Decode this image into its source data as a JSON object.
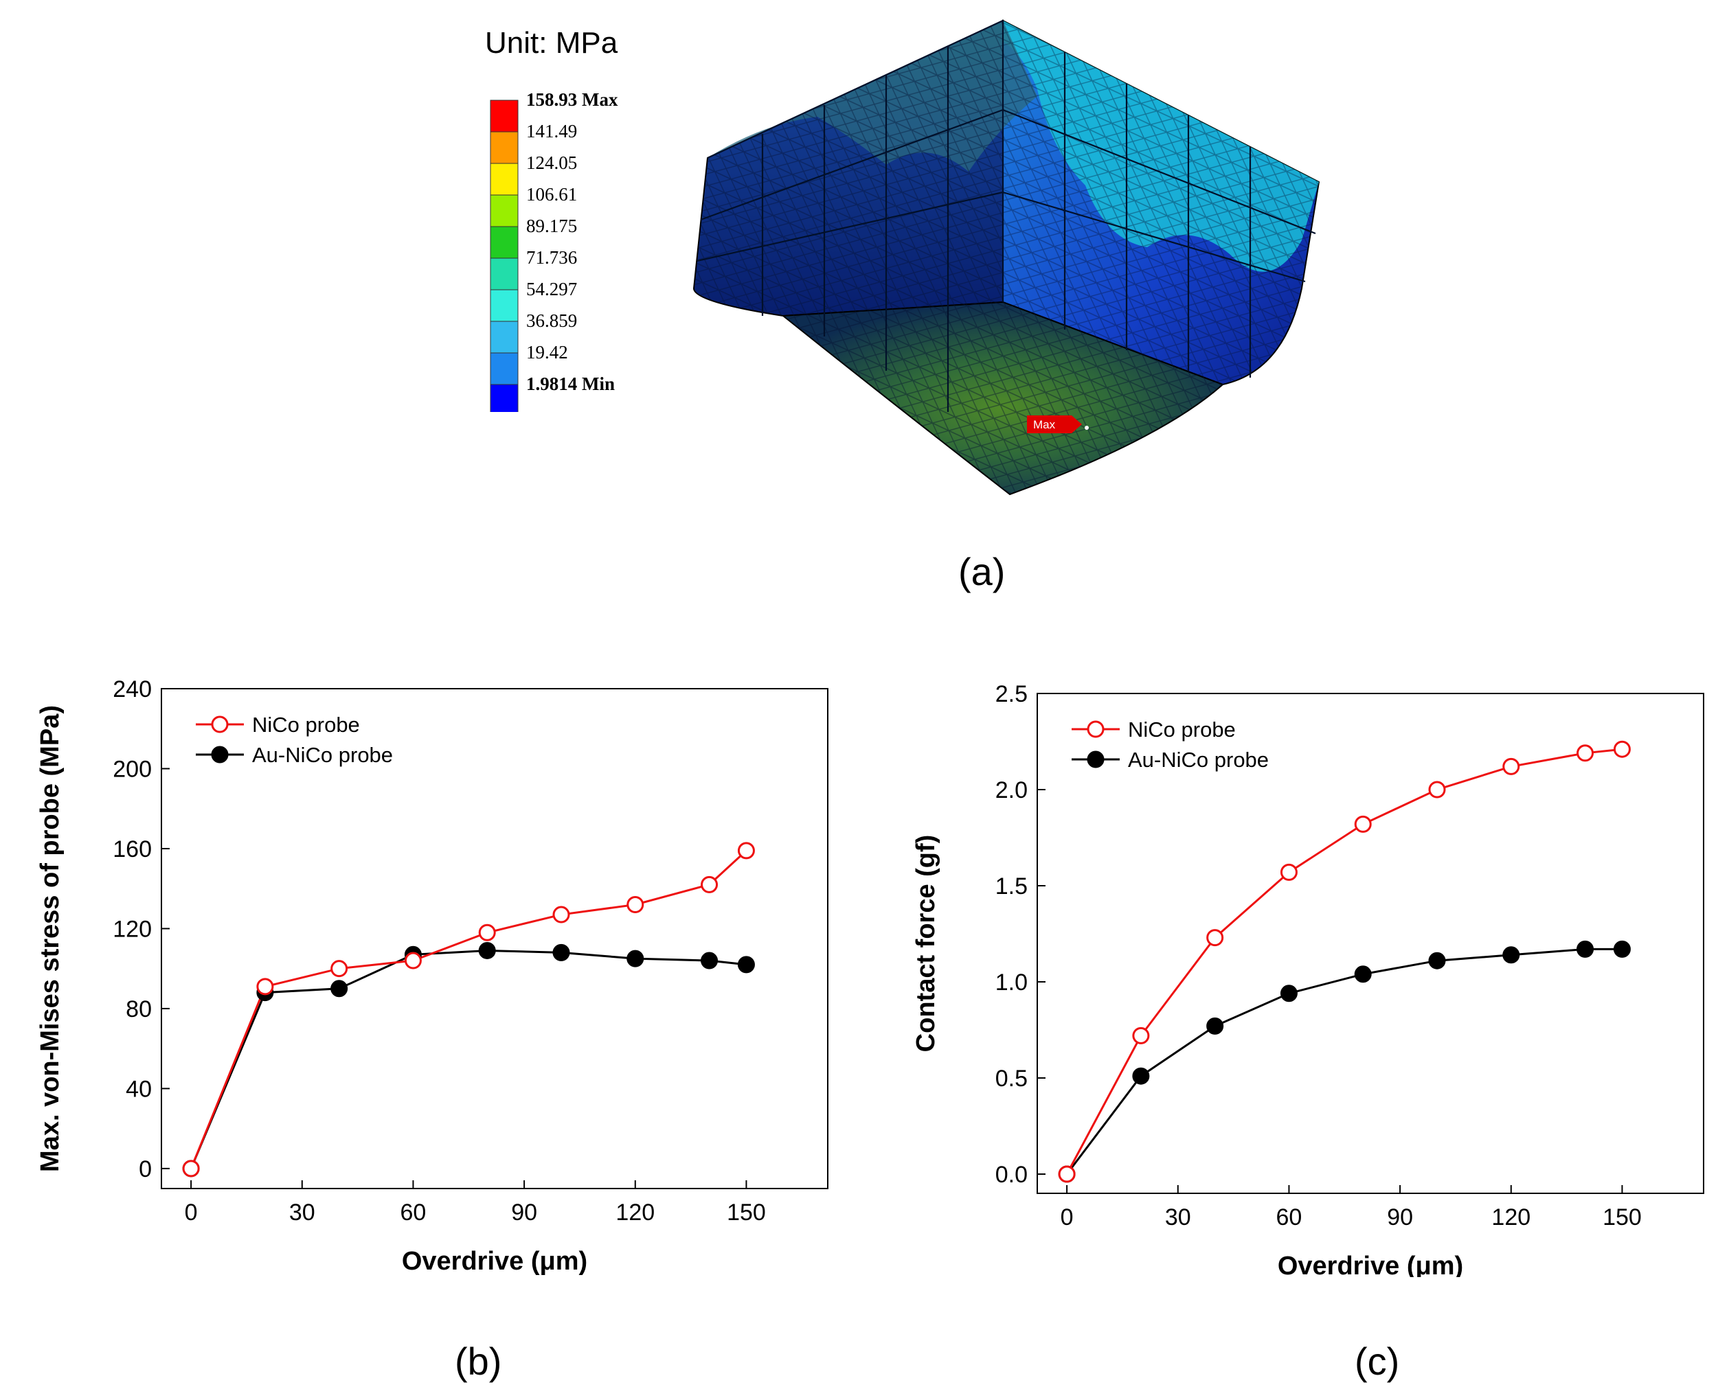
{
  "panel_labels": {
    "a": "(a)",
    "b": "(b)",
    "c": "(c)"
  },
  "contour": {
    "unit_title": "Unit: MPa",
    "legend": [
      {
        "label": "158.93 Max",
        "color": "#ff0000",
        "bold": true
      },
      {
        "label": "141.49",
        "color": "#ff9900"
      },
      {
        "label": "124.05",
        "color": "#ffee00"
      },
      {
        "label": "106.61",
        "color": "#99ee00"
      },
      {
        "label": "89.175",
        "color": "#22cc22"
      },
      {
        "label": "71.736",
        "color": "#22ddaa"
      },
      {
        "label": "54.297",
        "color": "#33eedd"
      },
      {
        "label": "36.859",
        "color": "#33bbee"
      },
      {
        "label": "19.42",
        "color": "#1e88ee"
      },
      {
        "label": "1.9814 Min",
        "color": "#0000ff",
        "bold": true
      }
    ],
    "max_marker": "Max"
  },
  "chart_data": [
    {
      "type": "line",
      "xlabel": "Overdrive (μm)",
      "ylabel": "Max. von-Mises stress of probe (MPa)",
      "xlim": [
        -8,
        172
      ],
      "ylim": [
        -10,
        240
      ],
      "xticks": [
        0,
        30,
        60,
        90,
        120,
        150
      ],
      "yticks": [
        0,
        40,
        80,
        120,
        160,
        200,
        240
      ],
      "legend_position": "top-left",
      "grid": false,
      "series": [
        {
          "name": "NiCo probe",
          "color": "#ee1111",
          "marker": "open-circle",
          "x": [
            0,
            20,
            40,
            60,
            80,
            100,
            120,
            140,
            150
          ],
          "y": [
            0,
            91,
            100,
            104,
            118,
            127,
            132,
            142,
            159
          ]
        },
        {
          "name": "Au-NiCo probe",
          "color": "#000000",
          "marker": "filled-circle",
          "x": [
            0,
            20,
            40,
            60,
            80,
            100,
            120,
            140,
            150
          ],
          "y": [
            0,
            88,
            90,
            107,
            109,
            108,
            105,
            104,
            102
          ]
        }
      ]
    },
    {
      "type": "line",
      "xlabel": "Overdrive (μm)",
      "ylabel": "Contact force (gf)",
      "xlim": [
        -8,
        172
      ],
      "ylim": [
        -0.1,
        2.5
      ],
      "xticks": [
        0,
        30,
        60,
        90,
        120,
        150
      ],
      "yticks": [
        "0.0",
        "0.5",
        "1.0",
        "1.5",
        "2.0",
        "2.5"
      ],
      "legend_position": "top-left",
      "grid": false,
      "series": [
        {
          "name": "NiCo probe",
          "color": "#ee1111",
          "marker": "open-circle",
          "x": [
            0,
            20,
            40,
            60,
            80,
            100,
            120,
            140,
            150
          ],
          "y": [
            0,
            0.72,
            1.23,
            1.57,
            1.82,
            2.0,
            2.12,
            2.19,
            2.21
          ]
        },
        {
          "name": "Au-NiCo probe",
          "color": "#000000",
          "marker": "filled-circle",
          "x": [
            0,
            20,
            40,
            60,
            80,
            100,
            120,
            140,
            150
          ],
          "y": [
            0,
            0.51,
            0.77,
            0.94,
            1.04,
            1.11,
            1.14,
            1.17,
            1.17
          ]
        }
      ]
    }
  ]
}
